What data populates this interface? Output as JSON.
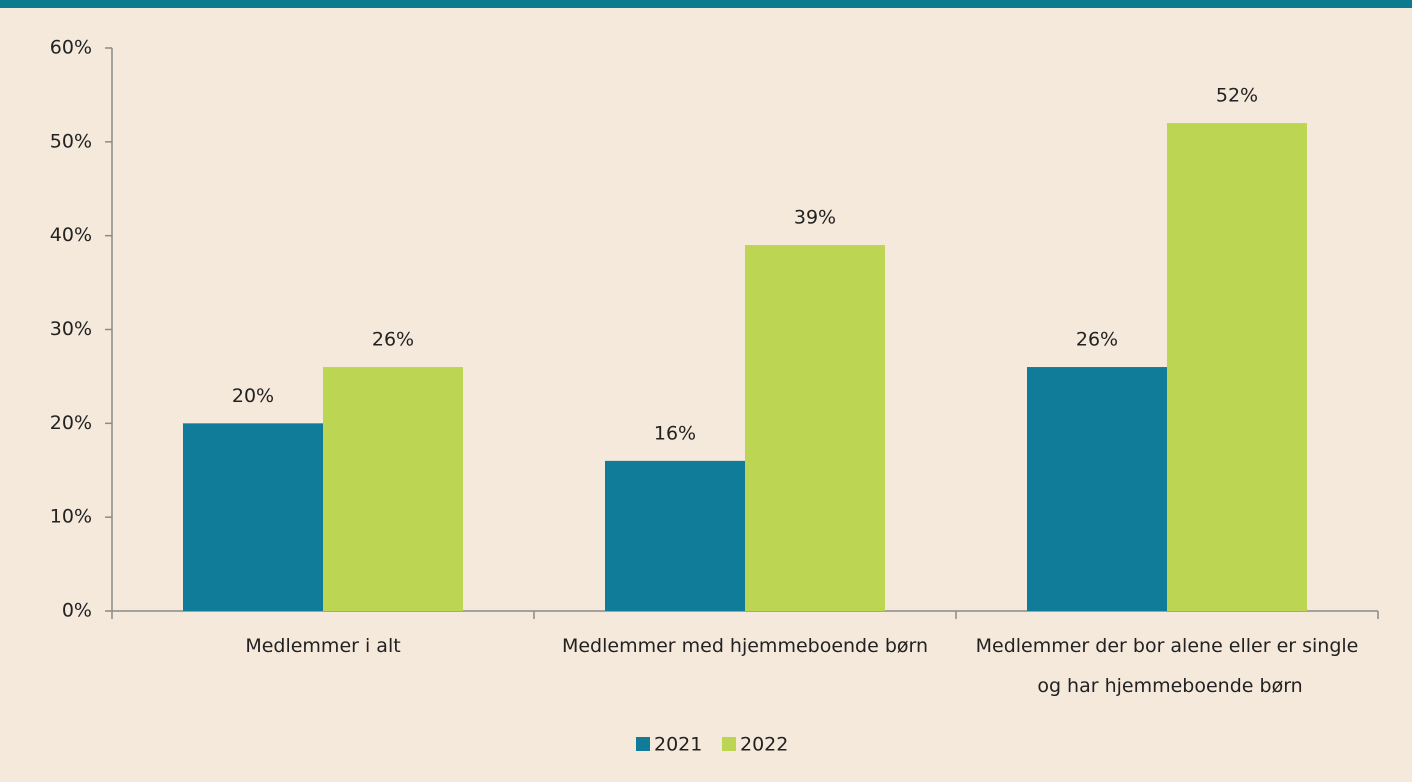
{
  "chart_data": {
    "type": "bar",
    "categories": [
      "Medlemmer i alt",
      "Medlemmer med hjemmeboende børn",
      "Medlemmer der bor alene eller er single og har hjemmeboende børn"
    ],
    "series": [
      {
        "name": "2021",
        "color": "#117c99",
        "values": [
          20,
          16,
          26
        ],
        "value_labels": [
          "20%",
          "16%",
          "26%"
        ]
      },
      {
        "name": "2022",
        "color": "#bcd653",
        "values": [
          26,
          39,
          52
        ],
        "value_labels": [
          "26%",
          "39%",
          "52%"
        ]
      }
    ],
    "ylim": [
      0,
      60
    ],
    "yticks": [
      {
        "value": 0,
        "label": "0%"
      },
      {
        "value": 10,
        "label": "10%"
      },
      {
        "value": 20,
        "label": "20%"
      },
      {
        "value": 30,
        "label": "30%"
      },
      {
        "value": 40,
        "label": "40%"
      },
      {
        "value": 50,
        "label": "50%"
      },
      {
        "value": 60,
        "label": "60%"
      }
    ],
    "legend": "bottom"
  }
}
